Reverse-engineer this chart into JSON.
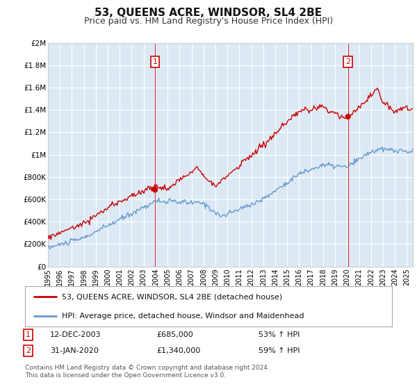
{
  "title": "53, QUEENS ACRE, WINDSOR, SL4 2BE",
  "subtitle": "Price paid vs. HM Land Registry's House Price Index (HPI)",
  "ylabel_ticks": [
    "£0",
    "£200K",
    "£400K",
    "£600K",
    "£800K",
    "£1M",
    "£1.2M",
    "£1.4M",
    "£1.6M",
    "£1.8M",
    "£2M"
  ],
  "ylim": [
    0,
    2000000
  ],
  "xlim_start": 1995.0,
  "xlim_end": 2025.5,
  "sale1_x": 2003.95,
  "sale1_y": 685000,
  "sale1_label": "1",
  "sale2_x": 2020.08,
  "sale2_y": 1340000,
  "sale2_label": "2",
  "sale_color": "#cc0000",
  "hpi_color": "#6699cc",
  "vline_color": "#cc0000",
  "grid_color": "#cccccc",
  "plot_bg_color": "#dce9f5",
  "legend_line1": "53, QUEENS ACRE, WINDSOR, SL4 2BE (detached house)",
  "legend_line2": "HPI: Average price, detached house, Windsor and Maidenhead",
  "annotation1_date": "12-DEC-2003",
  "annotation1_price": "£685,000",
  "annotation1_hpi": "53% ↑ HPI",
  "annotation2_date": "31-JAN-2020",
  "annotation2_price": "£1,340,000",
  "annotation2_hpi": "59% ↑ HPI",
  "footer": "Contains HM Land Registry data © Crown copyright and database right 2024.\nThis data is licensed under the Open Government Licence v3.0.",
  "background_color": "#ffffff",
  "title_fontsize": 11,
  "subtitle_fontsize": 9
}
